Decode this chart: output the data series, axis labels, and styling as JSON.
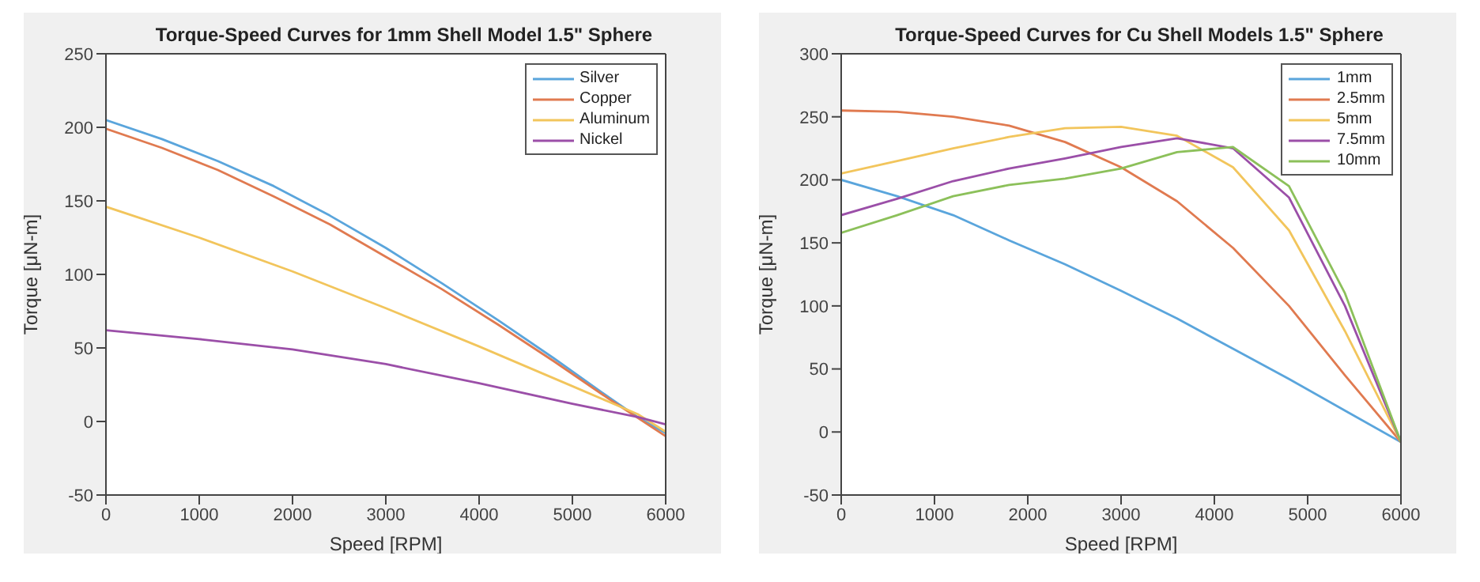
{
  "chart_data": [
    {
      "type": "line",
      "title": "Torque-Speed Curves for 1mm Shell Model 1.5\" Sphere",
      "xlabel": "Speed [RPM]",
      "ylabel": "Torque [μN-m]",
      "xlim": [
        0,
        6000
      ],
      "xticks": [
        0,
        1000,
        2000,
        3000,
        4000,
        5000,
        6000
      ],
      "ylim": [
        -50,
        250
      ],
      "yticks": [
        -50,
        0,
        50,
        100,
        150,
        200,
        250
      ],
      "legend": "top right",
      "marker": "none",
      "line_style": "solid",
      "series": [
        {
          "name": "Silver",
          "color": "#5aa5dc",
          "x": [
            0,
            600,
            1200,
            1800,
            2400,
            3000,
            3600,
            4200,
            4800,
            5400,
            5700,
            6000
          ],
          "values": [
            205,
            192,
            177,
            160,
            140,
            118,
            94,
            69,
            43,
            16,
            3,
            -8
          ]
        },
        {
          "name": "Copper",
          "color": "#e07a50",
          "x": [
            0,
            600,
            1200,
            1800,
            2400,
            3000,
            3600,
            4200,
            4800,
            5400,
            6000
          ],
          "values": [
            199,
            186,
            171,
            153,
            134,
            112,
            90,
            66,
            41,
            15,
            -10
          ]
        },
        {
          "name": "Aluminum",
          "color": "#f2c55c",
          "x": [
            0,
            1000,
            2000,
            3000,
            4000,
            5000,
            5700,
            6000
          ],
          "values": [
            146,
            125,
            102,
            77,
            51,
            24,
            5,
            -7
          ]
        },
        {
          "name": "Nickel",
          "color": "#9b4fa8",
          "x": [
            0,
            1000,
            2000,
            3000,
            4000,
            5000,
            5700,
            6000
          ],
          "values": [
            62,
            56,
            49,
            39,
            26,
            12,
            3,
            -2
          ]
        }
      ]
    },
    {
      "type": "line",
      "title": "Torque-Speed Curves for Cu Shell Models 1.5\" Sphere",
      "xlabel": "Speed [RPM]",
      "ylabel": "Torque [μN-m]",
      "xlim": [
        0,
        6000
      ],
      "xticks": [
        0,
        1000,
        2000,
        3000,
        4000,
        5000,
        6000
      ],
      "ylim": [
        -50,
        300
      ],
      "yticks": [
        -50,
        0,
        50,
        100,
        150,
        200,
        250,
        300
      ],
      "legend": "top right",
      "marker": "none",
      "line_style": "solid",
      "x": [
        0,
        600,
        1200,
        1800,
        2400,
        3000,
        3600,
        4200,
        4800,
        5400,
        6000
      ],
      "series": [
        {
          "name": "1mm",
          "color": "#5aa5dc",
          "values": [
            200,
            187,
            172,
            152,
            133,
            112,
            90,
            66,
            42,
            17,
            -8
          ]
        },
        {
          "name": "2.5mm",
          "color": "#e07a50",
          "values": [
            255,
            254,
            250,
            243,
            230,
            210,
            183,
            146,
            100,
            45,
            -8
          ]
        },
        {
          "name": "5mm",
          "color": "#f2c55c",
          "values": [
            205,
            215,
            225,
            234,
            241,
            242,
            235,
            210,
            160,
            80,
            -8
          ]
        },
        {
          "name": "7.5mm",
          "color": "#9b4fa8",
          "values": [
            172,
            185,
            199,
            209,
            217,
            226,
            233,
            225,
            186,
            100,
            -8
          ]
        },
        {
          "name": "10mm",
          "color": "#8cc05a",
          "values": [
            158,
            172,
            187,
            196,
            201,
            209,
            222,
            226,
            195,
            110,
            -8
          ]
        }
      ]
    }
  ]
}
